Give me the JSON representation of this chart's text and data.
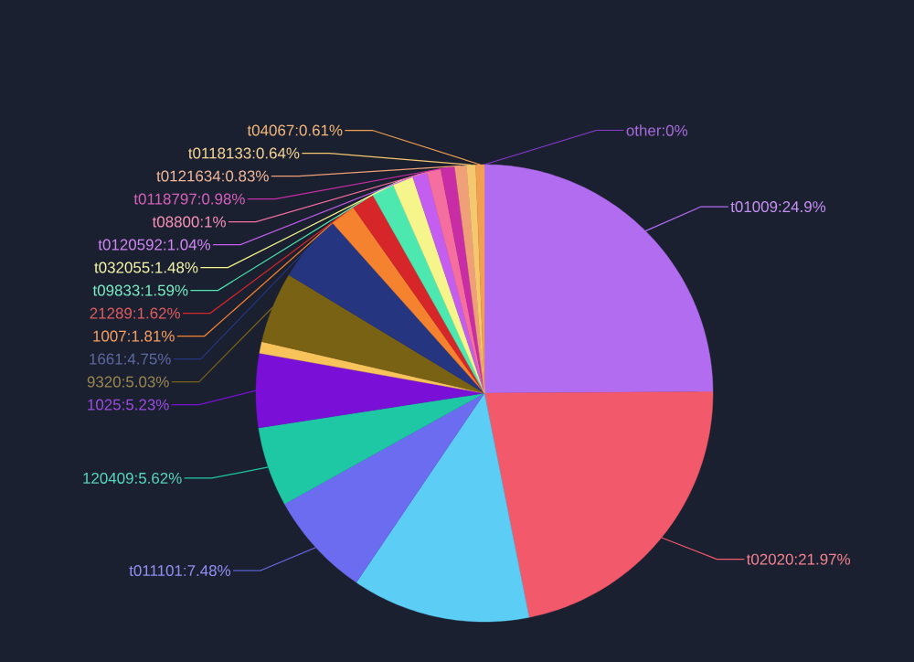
{
  "chart_data": {
    "type": "pie",
    "categories": [
      "t01009",
      "t02020",
      null,
      "t011101",
      "120409",
      "1025",
      null,
      "9320",
      "1661",
      "1007",
      "21289",
      "t09833",
      "t032055",
      "t0120592",
      "t08800",
      "t0118797",
      "t0121634",
      "t0118133",
      "t04067",
      "other"
    ],
    "values": [
      24.9,
      21.97,
      12.6,
      7.48,
      5.62,
      5.23,
      0.82,
      5.03,
      4.75,
      1.81,
      1.62,
      1.59,
      1.48,
      1.04,
      1,
      0.98,
      0.83,
      0.64,
      0.61,
      0
    ],
    "value_labels": [
      ":24.9%",
      ":21.97%",
      null,
      ":7.48%",
      ":5.62%",
      ":5.23%",
      null,
      ":5.03%",
      ":4.75%",
      ":1.81%",
      ":1.62%",
      ":1.59%",
      ":1.48%",
      ":1.04%",
      ":1%",
      ":0.98%",
      ":0.83%",
      ":0.64%",
      ":0.61%",
      ":0%"
    ],
    "colors": [
      "#b26cf0",
      "#f2596b",
      "#5ccdf5",
      "#6c6cf0",
      "#1ec8a5",
      "#7a10d8",
      "#f7c35a",
      "#7a6215",
      "#26357f",
      "#f5822f",
      "#d7262a",
      "#4de8b0",
      "#f5f58c",
      "#c35ef0",
      "#f56ea0",
      "#c82da5",
      "#f0a078",
      "#f5c870",
      "#f0a050",
      "#8a3ad0"
    ]
  }
}
